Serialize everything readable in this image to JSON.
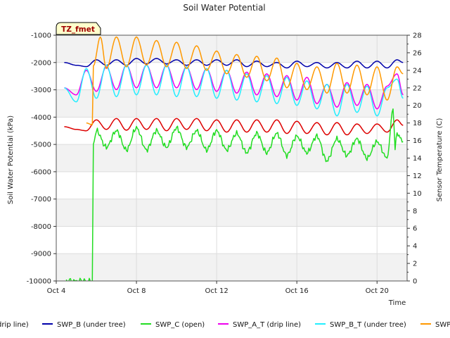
{
  "chart_data": {
    "type": "line",
    "title": "Soil Water Potential",
    "xlabel": "Time",
    "ylabel": "Soil Water Potential (kPa)",
    "y2label": "Sensor Temperature (C)",
    "badge": "TZ_fmet",
    "x_ticks": [
      {
        "label": "Oct 4",
        "day": 4
      },
      {
        "label": "Oct 8",
        "day": 8
      },
      {
        "label": "Oct 12",
        "day": 12
      },
      {
        "label": "Oct 16",
        "day": 16
      },
      {
        "label": "Oct 20",
        "day": 20
      }
    ],
    "xlim": [
      "Oct 4",
      "Oct 21.5"
    ],
    "ylim": [
      -10000,
      -1000
    ],
    "y_ticks": [
      "-10000",
      "-9000",
      "-8000",
      "-7000",
      "-6000",
      "-5000",
      "-4000",
      "-3000",
      "-2000",
      "-1000"
    ],
    "y2lim": [
      0,
      28
    ],
    "y2_ticks": [
      "0",
      "2",
      "4",
      "6",
      "8",
      "10",
      "12",
      "14",
      "16",
      "18",
      "20",
      "22",
      "24",
      "26",
      "28"
    ],
    "grid": true,
    "legend_placement": "bottom",
    "series": [
      {
        "name": "SWP_A (drip line)",
        "legend_label": "drip line)",
        "color": "#dd0000",
        "axis": "left",
        "x": [
          "Oct 4.4",
          "Oct 5.0",
          "Oct 5.5",
          "Oct 6.0",
          "Oct 6.5",
          "Oct 7.0",
          "Oct 7.5",
          "Oct 8.0",
          "Oct 8.5",
          "Oct 9.0",
          "Oct 9.5",
          "Oct 10.0",
          "Oct 10.5",
          "Oct 11.0",
          "Oct 11.5",
          "Oct 12.0",
          "Oct 12.5",
          "Oct 13.0",
          "Oct 13.5",
          "Oct 14.0",
          "Oct 14.5",
          "Oct 15.0",
          "Oct 15.5",
          "Oct 16.0",
          "Oct 16.5",
          "Oct 17.0",
          "Oct 17.5",
          "Oct 18.0",
          "Oct 18.5",
          "Oct 19.0",
          "Oct 19.5",
          "Oct 20.0",
          "Oct 20.5",
          "Oct 21.0",
          "Oct 21.3"
        ],
        "y": [
          -4350,
          -4450,
          -4500,
          -4100,
          -4450,
          -4050,
          -4480,
          -4050,
          -4450,
          -4050,
          -4500,
          -4050,
          -4450,
          -4050,
          -4500,
          -4100,
          -4550,
          -4100,
          -4550,
          -4100,
          -4550,
          -4100,
          -4600,
          -4150,
          -4600,
          -4200,
          -4650,
          -4200,
          -4650,
          -4250,
          -4600,
          -4250,
          -4550,
          -4100,
          -4300
        ]
      },
      {
        "name": "SWP_B (under tree)",
        "legend_label": "SWP_B (under tree)",
        "color": "#0000aa",
        "axis": "left",
        "x": [
          "Oct 4.4",
          "Oct 5.0",
          "Oct 5.5",
          "Oct 6.0",
          "Oct 6.5",
          "Oct 7.0",
          "Oct 7.5",
          "Oct 8.0",
          "Oct 8.5",
          "Oct 9.0",
          "Oct 9.5",
          "Oct 10.0",
          "Oct 10.5",
          "Oct 11.0",
          "Oct 11.5",
          "Oct 12.0",
          "Oct 12.5",
          "Oct 13.0",
          "Oct 13.5",
          "Oct 14.0",
          "Oct 14.5",
          "Oct 15.0",
          "Oct 15.5",
          "Oct 16.0",
          "Oct 16.5",
          "Oct 17.0",
          "Oct 17.5",
          "Oct 18.0",
          "Oct 18.5",
          "Oct 19.0",
          "Oct 19.5",
          "Oct 20.0",
          "Oct 20.5",
          "Oct 21.0",
          "Oct 21.3"
        ],
        "y": [
          -2000,
          -2100,
          -2150,
          -1900,
          -2100,
          -1900,
          -2100,
          -1850,
          -2050,
          -1850,
          -2050,
          -1900,
          -2100,
          -1900,
          -2100,
          -1900,
          -2100,
          -1900,
          -2150,
          -1950,
          -2150,
          -2000,
          -2200,
          -1950,
          -2150,
          -2000,
          -2200,
          -2000,
          -2200,
          -1950,
          -2200,
          -1950,
          -2200,
          -1900,
          -2000
        ]
      },
      {
        "name": "SWP_C (open)",
        "legend_label": "SWP_C (open)",
        "color": "#22dd22",
        "axis": "left",
        "x": [
          "Oct 4.5",
          "Oct 5.5",
          "Oct 5.8",
          "Oct 5.85",
          "Oct 6.0",
          "Oct 6.5",
          "Oct 7.0",
          "Oct 7.5",
          "Oct 8.0",
          "Oct 8.5",
          "Oct 9.0",
          "Oct 9.5",
          "Oct 10.0",
          "Oct 10.5",
          "Oct 11.0",
          "Oct 11.5",
          "Oct 12.0",
          "Oct 12.5",
          "Oct 13.0",
          "Oct 13.5",
          "Oct 14.0",
          "Oct 14.5",
          "Oct 15.0",
          "Oct 15.5",
          "Oct 16.0",
          "Oct 16.5",
          "Oct 17.0",
          "Oct 17.5",
          "Oct 18.0",
          "Oct 18.5",
          "Oct 19.0",
          "Oct 19.5",
          "Oct 20.0",
          "Oct 20.5",
          "Oct 20.8",
          "Oct 20.9",
          "Oct 21.0",
          "Oct 21.3"
        ],
        "y": [
          -10000,
          -10000,
          -10000,
          -5000,
          -4500,
          -5100,
          -4500,
          -5200,
          -4400,
          -5200,
          -4500,
          -5100,
          -4400,
          -5100,
          -4500,
          -5200,
          -4500,
          -5200,
          -4600,
          -5300,
          -4600,
          -5300,
          -4600,
          -5400,
          -4700,
          -5300,
          -4700,
          -5600,
          -4800,
          -5400,
          -4800,
          -5500,
          -4900,
          -5500,
          -3700,
          -5100,
          -4600,
          -4900
        ]
      },
      {
        "name": "SWP_A_T (drip line)",
        "legend_label": "SWP_A_T (drip line)",
        "color": "#ee00ee",
        "axis": "right",
        "x": [
          "Oct 4.4",
          "Oct 5.0",
          "Oct 5.5",
          "Oct 6.0",
          "Oct 6.5",
          "Oct 7.0",
          "Oct 7.5",
          "Oct 8.0",
          "Oct 8.5",
          "Oct 9.0",
          "Oct 9.5",
          "Oct 10.0",
          "Oct 10.5",
          "Oct 11.0",
          "Oct 11.5",
          "Oct 12.0",
          "Oct 12.5",
          "Oct 13.0",
          "Oct 13.5",
          "Oct 14.0",
          "Oct 14.5",
          "Oct 15.0",
          "Oct 15.5",
          "Oct 16.0",
          "Oct 16.5",
          "Oct 17.0",
          "Oct 17.5",
          "Oct 18.0",
          "Oct 18.5",
          "Oct 19.0",
          "Oct 19.5",
          "Oct 20.0",
          "Oct 20.5",
          "Oct 21.0",
          "Oct 21.3"
        ],
        "y": [
          22.0,
          21.2,
          24.0,
          21.6,
          24.4,
          21.8,
          24.6,
          22.0,
          24.6,
          22.0,
          24.6,
          22.0,
          24.4,
          21.8,
          24.2,
          21.6,
          24.0,
          21.4,
          23.8,
          21.2,
          23.6,
          21.0,
          23.4,
          20.6,
          23.2,
          20.2,
          22.4,
          19.8,
          22.6,
          20.0,
          22.4,
          19.6,
          22.2,
          23.6,
          21.2
        ]
      },
      {
        "name": "SWP_B_T (under tree)",
        "legend_label": "SWP_B_T (under tree)",
        "color": "#22eeff",
        "axis": "right",
        "x": [
          "Oct 4.4",
          "Oct 5.0",
          "Oct 5.5",
          "Oct 6.0",
          "Oct 6.5",
          "Oct 7.0",
          "Oct 7.5",
          "Oct 8.0",
          "Oct 8.5",
          "Oct 9.0",
          "Oct 9.5",
          "Oct 10.0",
          "Oct 10.5",
          "Oct 11.0",
          "Oct 11.5",
          "Oct 12.0",
          "Oct 12.5",
          "Oct 13.0",
          "Oct 13.5",
          "Oct 14.0",
          "Oct 14.5",
          "Oct 15.0",
          "Oct 15.5",
          "Oct 16.0",
          "Oct 16.5",
          "Oct 17.0",
          "Oct 17.5",
          "Oct 18.0",
          "Oct 18.5",
          "Oct 19.0",
          "Oct 19.5",
          "Oct 20.0",
          "Oct 20.5",
          "Oct 21.0",
          "Oct 21.3"
        ],
        "y": [
          22.0,
          20.4,
          24.2,
          20.8,
          24.6,
          21.0,
          24.6,
          21.2,
          24.6,
          21.2,
          24.6,
          21.0,
          24.4,
          21.0,
          24.2,
          20.8,
          24.0,
          20.6,
          23.6,
          20.4,
          23.4,
          20.2,
          23.2,
          20.0,
          22.8,
          19.6,
          22.4,
          18.8,
          22.4,
          19.2,
          22.2,
          18.8,
          22.0,
          23.0,
          20.8
        ]
      },
      {
        "name": "SWP_C_T (open)",
        "legend_label": "SWP",
        "color": "#ff9900",
        "axis": "right",
        "x": [
          "Oct 5.5",
          "Oct 5.8",
          "Oct 5.85",
          "Oct 6.2",
          "Oct 6.5",
          "Oct 7.0",
          "Oct 7.5",
          "Oct 8.0",
          "Oct 8.5",
          "Oct 9.0",
          "Oct 9.5",
          "Oct 10.0",
          "Oct 10.5",
          "Oct 11.0",
          "Oct 11.5",
          "Oct 12.0",
          "Oct 12.5",
          "Oct 13.0",
          "Oct 13.5",
          "Oct 14.0",
          "Oct 14.5",
          "Oct 15.0",
          "Oct 15.5",
          "Oct 16.0",
          "Oct 16.5",
          "Oct 17.0",
          "Oct 17.5",
          "Oct 18.0",
          "Oct 18.5",
          "Oct 19.0",
          "Oct 19.5",
          "Oct 20.0",
          "Oct 20.5",
          "Oct 21.0",
          "Oct 21.3"
        ],
        "y": [
          18.0,
          17.8,
          24.5,
          27.8,
          24.2,
          27.8,
          24.4,
          27.8,
          24.6,
          27.4,
          24.4,
          27.2,
          24.2,
          26.8,
          24.0,
          26.2,
          23.6,
          25.8,
          23.2,
          25.6,
          22.8,
          25.4,
          22.0,
          24.8,
          21.8,
          24.4,
          21.4,
          24.8,
          21.4,
          24.6,
          21.2,
          24.4,
          20.6,
          24.4,
          23.6
        ]
      }
    ]
  }
}
